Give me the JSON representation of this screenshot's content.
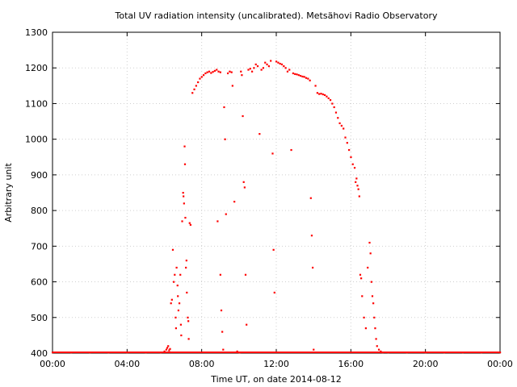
{
  "chart_data": {
    "type": "scatter",
    "title": "Total UV radiation intensity (uncalibrated). Metsähovi Radio Observatory",
    "xlabel": "Time UT, on date 2014-08-12",
    "ylabel": "Arbitrary unit",
    "xlim": [
      0,
      24
    ],
    "ylim": [
      400,
      1300
    ],
    "x_ticks": [
      {
        "value": 0,
        "label": "00:00"
      },
      {
        "value": 4,
        "label": "04:00"
      },
      {
        "value": 8,
        "label": "08:00"
      },
      {
        "value": 12,
        "label": "12:00"
      },
      {
        "value": 16,
        "label": "16:00"
      },
      {
        "value": 20,
        "label": "20:00"
      },
      {
        "value": 24,
        "label": "00:00"
      }
    ],
    "y_ticks": [
      {
        "value": 400,
        "label": "400"
      },
      {
        "value": 500,
        "label": "500"
      },
      {
        "value": 600,
        "label": "600"
      },
      {
        "value": 700,
        "label": "700"
      },
      {
        "value": 800,
        "label": "800"
      },
      {
        "value": 900,
        "label": "900"
      },
      {
        "value": 1000,
        "label": "1000"
      },
      {
        "value": 1100,
        "label": "1100"
      },
      {
        "value": 1200,
        "label": "1200"
      },
      {
        "value": 1300,
        "label": "1300"
      }
    ],
    "grid": true,
    "series": [
      {
        "color": "#ff0000",
        "points": [
          [
            0.0,
            400
          ],
          [
            1.0,
            400
          ],
          [
            2.0,
            400
          ],
          [
            3.0,
            400
          ],
          [
            4.0,
            400
          ],
          [
            5.0,
            400
          ],
          [
            5.8,
            401
          ],
          [
            6.0,
            405
          ],
          [
            6.1,
            410
          ],
          [
            6.15,
            415
          ],
          [
            6.2,
            420
          ],
          [
            6.25,
            408
          ],
          [
            6.3,
            412
          ],
          [
            6.35,
            540
          ],
          [
            6.4,
            550
          ],
          [
            6.45,
            690
          ],
          [
            6.5,
            600
          ],
          [
            6.55,
            620
          ],
          [
            6.6,
            500
          ],
          [
            6.62,
            470
          ],
          [
            6.65,
            640
          ],
          [
            6.7,
            590
          ],
          [
            6.72,
            560
          ],
          [
            6.75,
            520
          ],
          [
            6.8,
            540
          ],
          [
            6.85,
            620
          ],
          [
            6.88,
            480
          ],
          [
            6.9,
            450
          ],
          [
            6.95,
            770
          ],
          [
            7.0,
            850
          ],
          [
            7.02,
            840
          ],
          [
            7.05,
            820
          ],
          [
            7.08,
            980
          ],
          [
            7.1,
            930
          ],
          [
            7.12,
            780
          ],
          [
            7.15,
            640
          ],
          [
            7.18,
            660
          ],
          [
            7.2,
            570
          ],
          [
            7.25,
            500
          ],
          [
            7.28,
            490
          ],
          [
            7.3,
            440
          ],
          [
            7.35,
            765
          ],
          [
            7.4,
            760
          ],
          [
            7.5,
            1130
          ],
          [
            7.6,
            1140
          ],
          [
            7.7,
            1150
          ],
          [
            7.8,
            1160
          ],
          [
            7.9,
            1170
          ],
          [
            8.0,
            1175
          ],
          [
            8.1,
            1180
          ],
          [
            8.2,
            1185
          ],
          [
            8.3,
            1188
          ],
          [
            8.4,
            1190
          ],
          [
            8.5,
            1186
          ],
          [
            8.6,
            1189
          ],
          [
            8.7,
            1192
          ],
          [
            8.8,
            1195
          ],
          [
            8.9,
            1190
          ],
          [
            9.0,
            1188
          ],
          [
            8.85,
            770
          ],
          [
            9.0,
            620
          ],
          [
            9.05,
            520
          ],
          [
            9.1,
            460
          ],
          [
            9.15,
            410
          ],
          [
            9.2,
            1090
          ],
          [
            9.25,
            1000
          ],
          [
            9.3,
            790
          ],
          [
            9.4,
            1185
          ],
          [
            9.5,
            1190
          ],
          [
            9.6,
            1188
          ],
          [
            9.65,
            1150
          ],
          [
            9.75,
            825
          ],
          [
            9.9,
            405
          ],
          [
            10.0,
            402
          ],
          [
            10.05,
            400
          ],
          [
            10.1,
            1190
          ],
          [
            10.15,
            1180
          ],
          [
            10.2,
            1065
          ],
          [
            10.25,
            880
          ],
          [
            10.3,
            865
          ],
          [
            10.35,
            620
          ],
          [
            10.4,
            480
          ],
          [
            10.5,
            1195
          ],
          [
            10.6,
            1198
          ],
          [
            10.7,
            1190
          ],
          [
            10.8,
            1200
          ],
          [
            10.9,
            1210
          ],
          [
            11.0,
            1205
          ],
          [
            11.1,
            1015
          ],
          [
            11.2,
            1195
          ],
          [
            11.3,
            1200
          ],
          [
            11.4,
            1215
          ],
          [
            11.5,
            1210
          ],
          [
            11.6,
            1205
          ],
          [
            11.7,
            1220
          ],
          [
            11.8,
            960
          ],
          [
            11.85,
            690
          ],
          [
            11.9,
            570
          ],
          [
            12.0,
            1218
          ],
          [
            12.1,
            1215
          ],
          [
            12.2,
            1212
          ],
          [
            12.3,
            1210
          ],
          [
            12.4,
            1205
          ],
          [
            12.5,
            1200
          ],
          [
            12.6,
            1190
          ],
          [
            12.7,
            1195
          ],
          [
            12.8,
            970
          ],
          [
            12.9,
            1185
          ],
          [
            13.0,
            1183
          ],
          [
            13.1,
            1182
          ],
          [
            13.2,
            1180
          ],
          [
            13.3,
            1178
          ],
          [
            13.4,
            1176
          ],
          [
            13.5,
            1175
          ],
          [
            13.6,
            1172
          ],
          [
            13.7,
            1170
          ],
          [
            13.8,
            1165
          ],
          [
            13.85,
            835
          ],
          [
            13.9,
            730
          ],
          [
            13.95,
            640
          ],
          [
            14.0,
            410
          ],
          [
            14.1,
            1150
          ],
          [
            14.2,
            1130
          ],
          [
            14.3,
            1127
          ],
          [
            14.4,
            1128
          ],
          [
            14.5,
            1126
          ],
          [
            14.6,
            1124
          ],
          [
            14.7,
            1120
          ],
          [
            14.8,
            1115
          ],
          [
            14.9,
            1110
          ],
          [
            15.0,
            1100
          ],
          [
            15.1,
            1090
          ],
          [
            15.2,
            1075
          ],
          [
            15.3,
            1060
          ],
          [
            15.4,
            1045
          ],
          [
            15.5,
            1038
          ],
          [
            15.6,
            1030
          ],
          [
            15.7,
            1005
          ],
          [
            15.8,
            990
          ],
          [
            15.9,
            970
          ],
          [
            16.0,
            950
          ],
          [
            16.1,
            930
          ],
          [
            16.2,
            920
          ],
          [
            16.25,
            880
          ],
          [
            16.3,
            890
          ],
          [
            16.35,
            870
          ],
          [
            16.4,
            860
          ],
          [
            16.45,
            840
          ],
          [
            16.5,
            620
          ],
          [
            16.55,
            610
          ],
          [
            16.6,
            560
          ],
          [
            16.7,
            500
          ],
          [
            16.8,
            470
          ],
          [
            16.9,
            640
          ],
          [
            17.0,
            710
          ],
          [
            17.05,
            680
          ],
          [
            17.1,
            600
          ],
          [
            17.15,
            560
          ],
          [
            17.2,
            540
          ],
          [
            17.25,
            500
          ],
          [
            17.3,
            470
          ],
          [
            17.35,
            440
          ],
          [
            17.4,
            420
          ],
          [
            17.5,
            410
          ],
          [
            17.6,
            405
          ],
          [
            17.7,
            402
          ],
          [
            18.0,
            400
          ],
          [
            19.0,
            400
          ],
          [
            20.0,
            400
          ],
          [
            21.0,
            400
          ],
          [
            22.0,
            400
          ],
          [
            23.0,
            400
          ],
          [
            24.0,
            400
          ]
        ]
      }
    ]
  }
}
